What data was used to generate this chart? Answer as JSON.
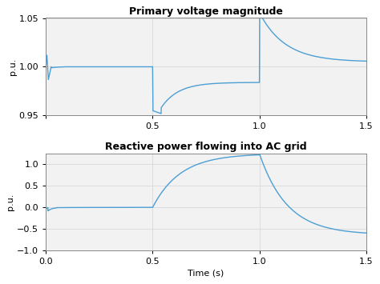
{
  "title1": "Primary voltage magnitude",
  "title2": "Reactive power flowing into AC grid",
  "ylabel": "p.u.",
  "xlabel": "Time (s)",
  "xlim": [
    0,
    1.5
  ],
  "ylim1": [
    0.95,
    1.05
  ],
  "ylim2": [
    -1,
    1.25
  ],
  "yticks1": [
    0.95,
    1.0,
    1.05
  ],
  "yticks2": [
    -1,
    -0.5,
    0,
    0.5,
    1
  ],
  "xticks": [
    0,
    0.5,
    1.0,
    1.5
  ],
  "line_color": "#4C9FD4",
  "grid_color": "#D8D8D8",
  "axes_bg_color": "#F2F2F2",
  "fig_bg_color": "#FFFFFF",
  "line_width": 1.0,
  "title_fontsize": 9,
  "tick_fontsize": 8,
  "label_fontsize": 8
}
